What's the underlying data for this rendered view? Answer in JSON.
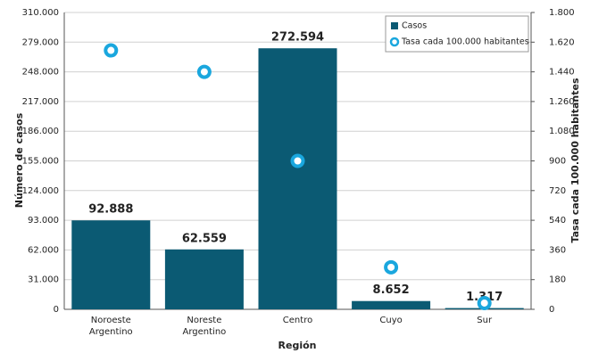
{
  "chart_data": {
    "type": "bar",
    "categories": [
      "Noroeste Argentino",
      "Noreste Argentino",
      "Centro",
      "Cuyo",
      "Sur"
    ],
    "series": [
      {
        "name": "Casos",
        "color": "#0b5a73",
        "type": "bar",
        "values": [
          92888,
          62559,
          272594,
          8652,
          1317
        ],
        "value_labels": [
          "92.888",
          "62.559",
          "272.594",
          "8.652",
          "1.317"
        ]
      },
      {
        "name": "Tasa cada 100.000 habitantes",
        "color": "#1aa7de",
        "type": "scatter",
        "axis": "y2",
        "values": [
          1570,
          1440,
          900,
          255,
          38
        ]
      }
    ],
    "ylabel": "Número de casos",
    "y2label": "Tasa cada 100.000 habitantes",
    "xlabel": "Región",
    "ylim": [
      0,
      310000
    ],
    "yticks": [
      0,
      {
        "value": 31000,
        "label": "31.000"
      },
      {
        "value": 62000,
        "label": "62.000"
      },
      {
        "value": 93000,
        "label": "93.000"
      },
      {
        "value": 124000,
        "label": "124.000"
      },
      {
        "value": 155000,
        "label": "155.000"
      },
      {
        "value": 186000,
        "label": "186.000"
      },
      {
        "value": 217000,
        "label": "217.000"
      },
      {
        "value": 248000,
        "label": "248.000"
      },
      {
        "value": 279000,
        "label": "279.000"
      },
      {
        "value": 310000,
        "label": "310.000"
      }
    ],
    "y2lim": [
      0,
      1800
    ],
    "y2ticks": [
      0,
      180,
      360,
      540,
      720,
      900,
      {
        "value": 1080,
        "label": "1.080"
      },
      {
        "value": 1260,
        "label": "1.260"
      },
      {
        "value": 1440,
        "label": "1.440"
      },
      {
        "value": 1620,
        "label": "1.620"
      },
      {
        "value": 1800,
        "label": "1.800"
      }
    ],
    "grid": true,
    "legend": "upper right"
  }
}
